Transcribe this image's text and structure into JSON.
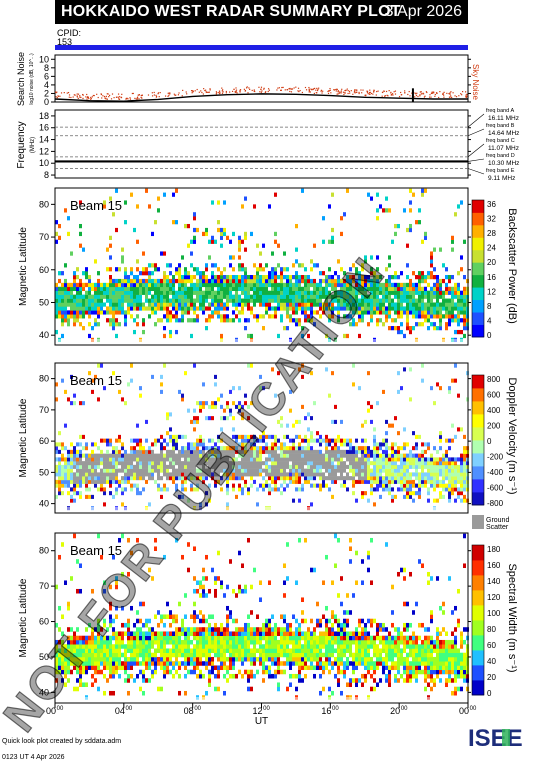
{
  "header": {
    "title": "HOKKAIDO WEST RADAR SUMMARY PLOT",
    "date": "3 Apr 2026",
    "cpid_label": "CPID:",
    "cpid_value": "153"
  },
  "watermark": "NOT FOR PUBLICATION",
  "footer": {
    "credit": "Quick look plot created by sddata.adm",
    "stamp": "0123 UT 4 Apr 2026",
    "logo_text": "ISEE"
  },
  "colors": {
    "cpid_bar": "#1f1fe6",
    "noise_search": "#d03a10",
    "noise_sky": "#f08050",
    "ground_scatter": "#9a9a9a"
  },
  "chart_data": [
    {
      "type": "line",
      "name": "noise",
      "ylabel": "Search Noise",
      "ylabel_sub": "log10 noise (dB, 10^...)",
      "right_label": "Sky Noise",
      "ylim": [
        0,
        11
      ],
      "yticks": [
        "10",
        "8",
        "6",
        "4",
        "2",
        "0"
      ],
      "series": [
        {
          "name": "Search Noise",
          "x": [
            0,
            2,
            4,
            6,
            8,
            10,
            12,
            14,
            16,
            18,
            20,
            22,
            24
          ],
          "values": [
            1.6,
            1.2,
            1.1,
            1.5,
            2.2,
            2.6,
            2.8,
            2.7,
            2.4,
            2.0,
            1.8,
            1.6,
            1.6
          ]
        }
      ]
    },
    {
      "type": "line",
      "name": "frequency",
      "ylabel": "Frequency",
      "yunit": "(MHz)",
      "ylim": [
        7.5,
        19
      ],
      "yticks": [
        "18",
        "16",
        "14",
        "12",
        "10",
        "8"
      ],
      "bands": [
        {
          "label": "freq band A",
          "value": "16.11 MHz",
          "mhz": 16.11
        },
        {
          "label": "freq band B",
          "value": "14.64 MHz",
          "mhz": 14.64
        },
        {
          "label": "freq band C",
          "value": "11.07 MHz",
          "mhz": 11.07
        },
        {
          "label": "freq band D",
          "value": "10.30 MHz",
          "mhz": 10.3
        },
        {
          "label": "freq band E",
          "value": "9.11 MHz",
          "mhz": 9.11
        }
      ]
    },
    {
      "type": "heatmap",
      "name": "power",
      "beam": "Beam 15",
      "ylabel": "Magnetic Latitude",
      "ylim": [
        37,
        85
      ],
      "yticks": [
        "80",
        "70",
        "60",
        "50",
        "40"
      ],
      "colorbar_label": "Backscatter Power (dB)",
      "colorbar_ticks": [
        "36",
        "32",
        "28",
        "24",
        "20",
        "16",
        "12",
        "8",
        "4",
        "0"
      ]
    },
    {
      "type": "heatmap",
      "name": "velocity",
      "beam": "Beam 15",
      "ylabel": "Magnetic Latitude",
      "ylim": [
        37,
        85
      ],
      "yticks": [
        "80",
        "70",
        "60",
        "50",
        "40"
      ],
      "colorbar_label": "Doppler Velocity (m s⁻¹)",
      "colorbar_ticks": [
        "800",
        "600",
        "400",
        "200",
        "0",
        "-200",
        "-400",
        "-600",
        "-800"
      ],
      "ground_scatter_label": [
        "Ground",
        "Scatter"
      ]
    },
    {
      "type": "heatmap",
      "name": "width",
      "beam": "Beam 15",
      "ylabel": "Magnetic Latitude",
      "ylim": [
        37,
        85
      ],
      "yticks": [
        "80",
        "70",
        "60",
        "50",
        "40"
      ],
      "colorbar_label": "Spectral Width (m s⁻¹)",
      "colorbar_ticks": [
        "180",
        "160",
        "140",
        "120",
        "100",
        "80",
        "60",
        "40",
        "20",
        "0"
      ],
      "xlabel": "UT",
      "xticks": [
        "00",
        "04",
        "08",
        "12",
        "16",
        "20",
        "00"
      ],
      "xtick_sup": "00"
    }
  ]
}
